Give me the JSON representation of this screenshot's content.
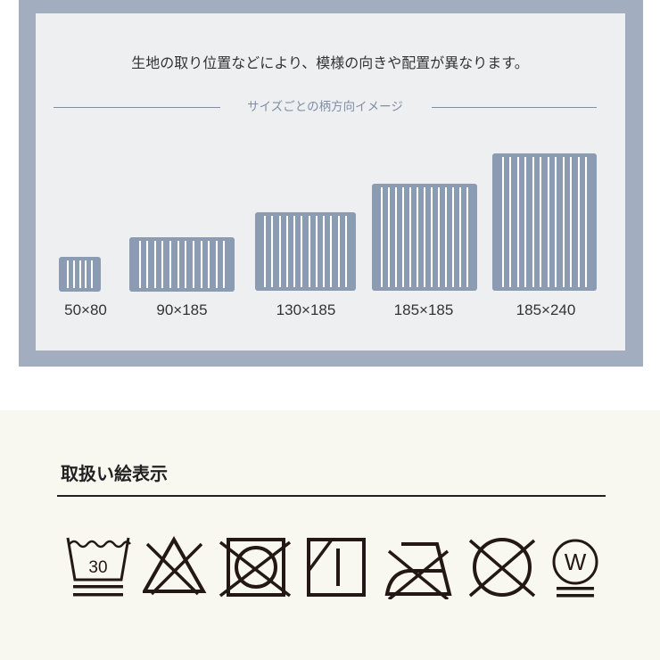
{
  "notice": "生地の取り位置などにより、模様の向きや配置が異なります。",
  "subtitle": "サイズごとの柄方向イメージ",
  "sizes": [
    {
      "label": "50×80",
      "stripes": 5
    },
    {
      "label": "90×185",
      "stripes": 12
    },
    {
      "label": "130×185",
      "stripes": 12
    },
    {
      "label": "185×185",
      "stripes": 13
    },
    {
      "label": "185×240",
      "stripes": 12
    }
  ],
  "colors": {
    "frame": "#a2aebf",
    "panel": "#eeeff1",
    "rug": "#8a9bb2",
    "care_bg": "#f8f7f0"
  },
  "care": {
    "title": "取扱い絵表示",
    "wash_temp": "30",
    "dry_clean_letter": "W",
    "icons": [
      "wash-30-gentle-icon",
      "no-bleach-icon",
      "no-tumble-dry-icon",
      "line-dry-shade-icon",
      "no-iron-icon",
      "no-dry-clean-icon",
      "wet-clean-gentle-icon"
    ]
  }
}
